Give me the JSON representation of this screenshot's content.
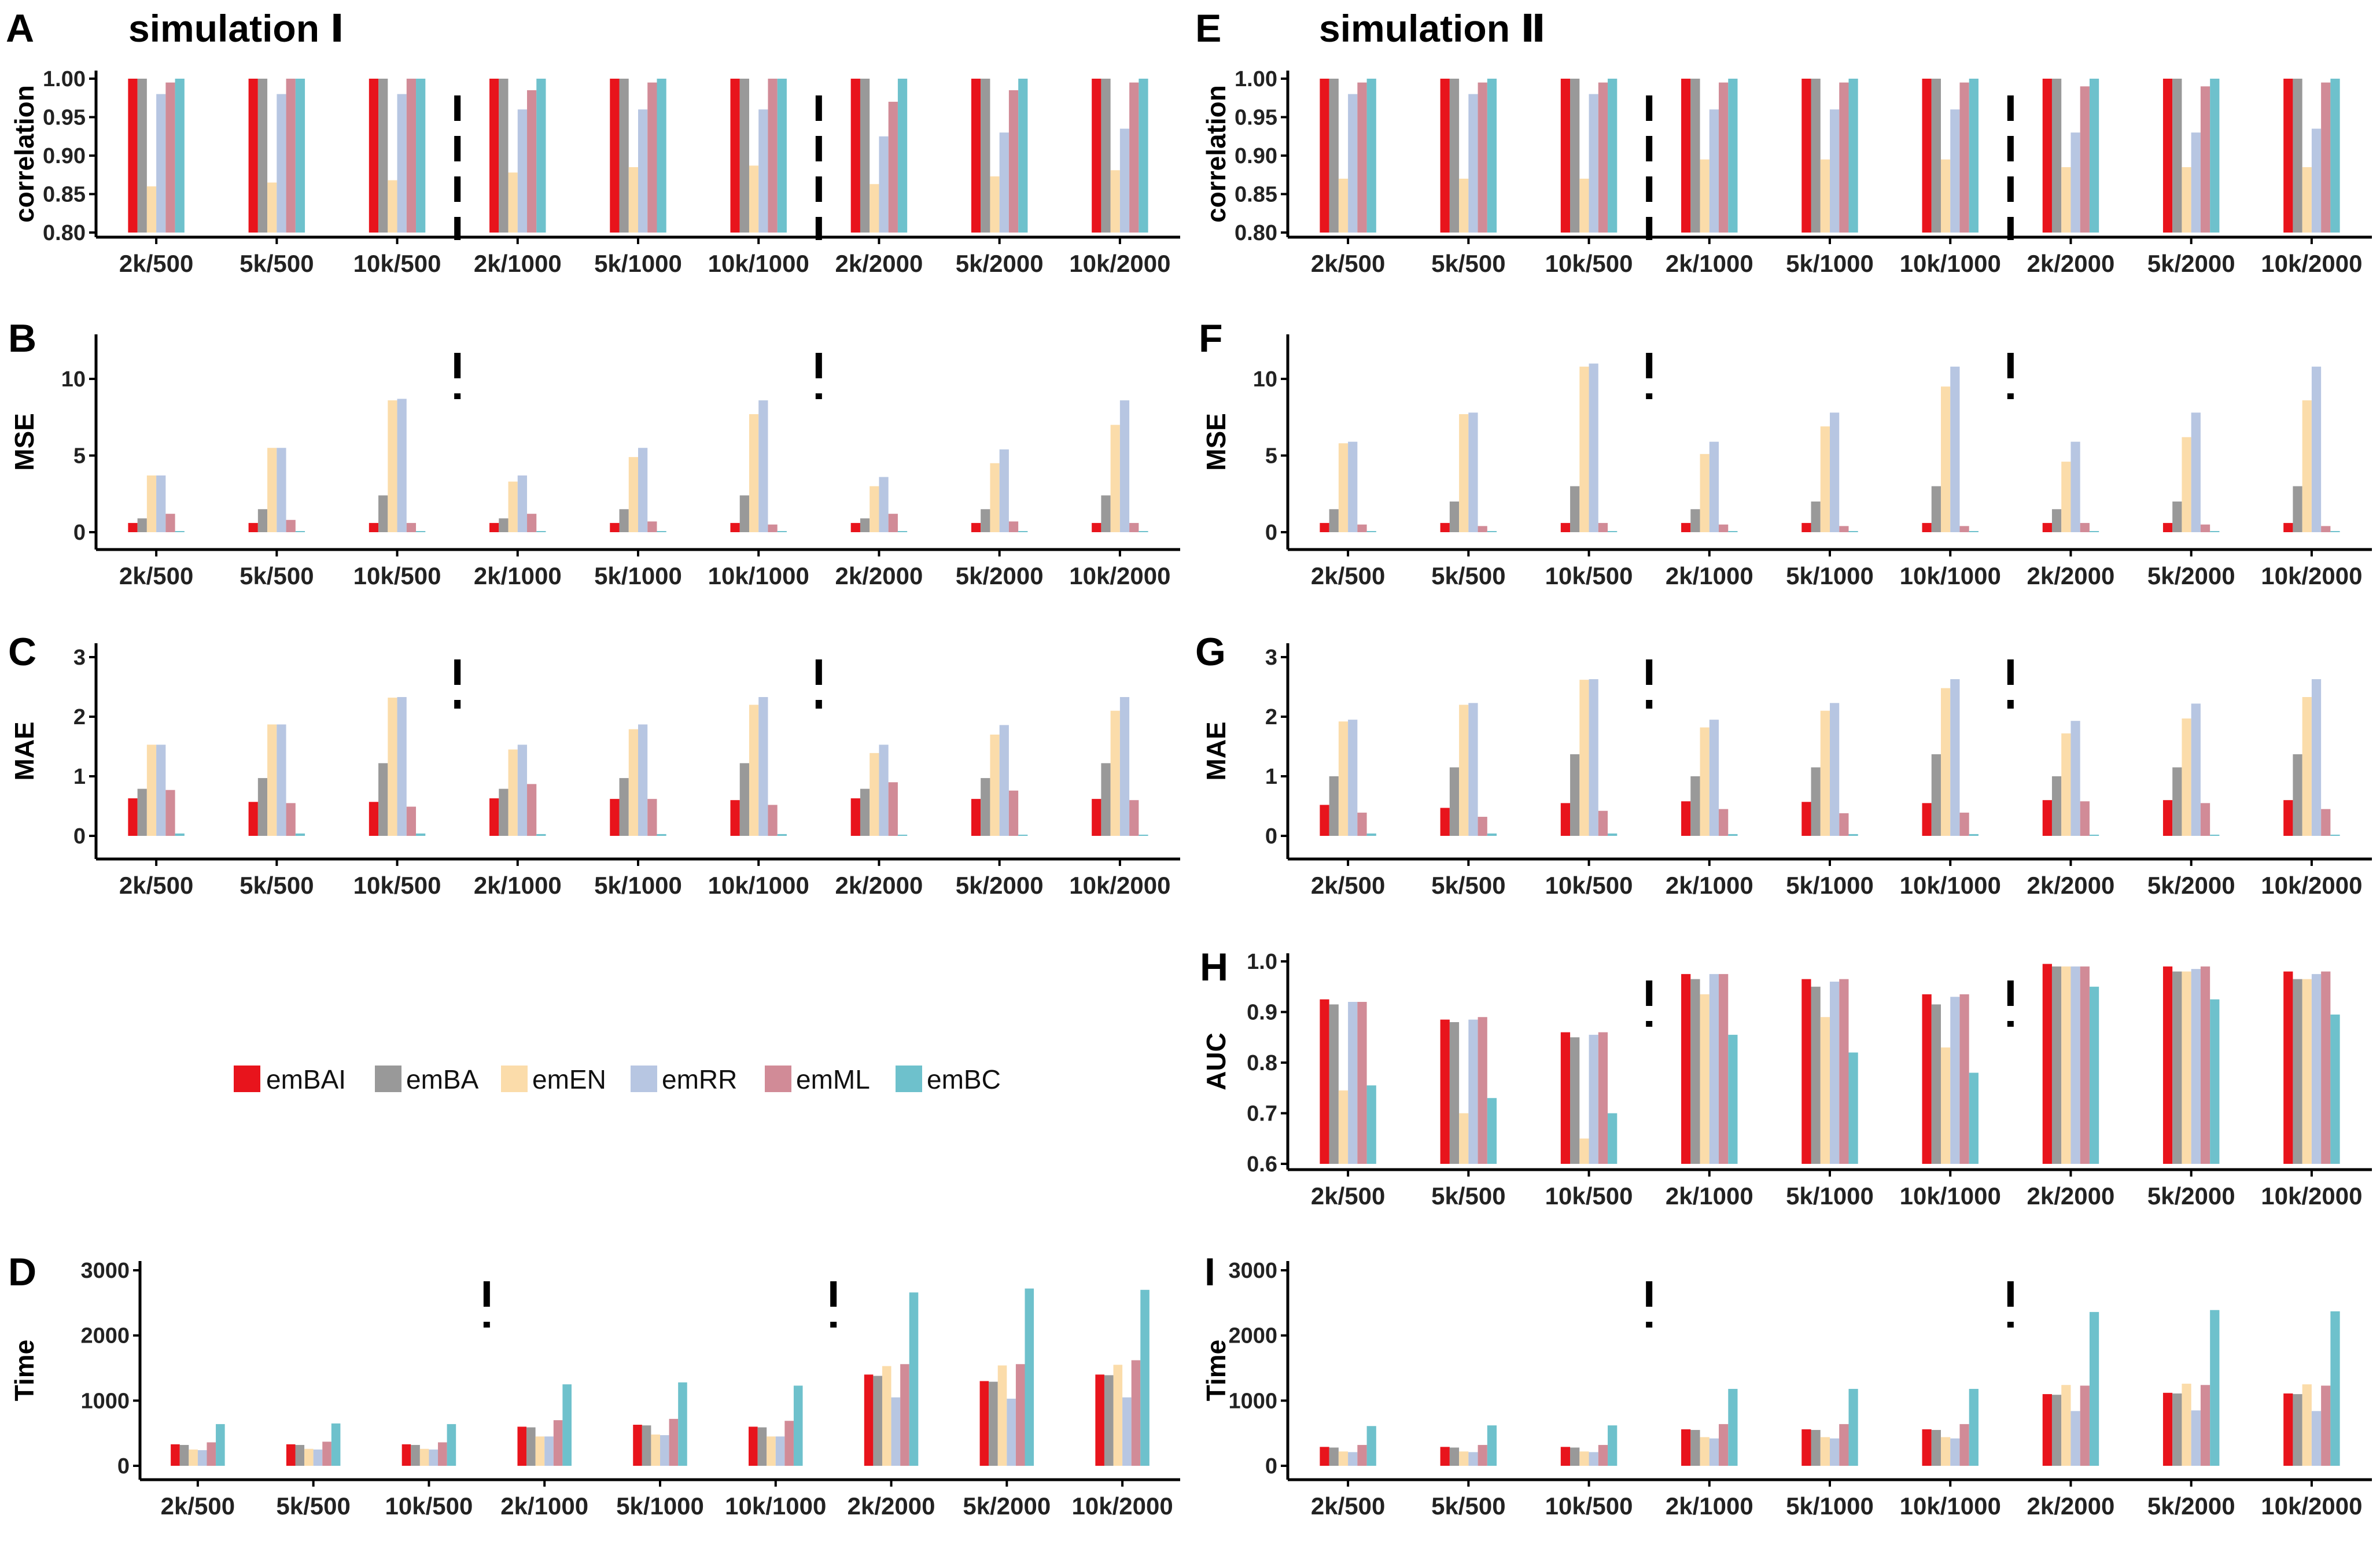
{
  "figure": {
    "left_title": "simulation Ⅰ",
    "right_title": "simulation Ⅱ"
  },
  "legend": [
    {
      "name": "emBAI",
      "color": "#e8141c"
    },
    {
      "name": "emBA",
      "color": "#999999"
    },
    {
      "name": "emEN",
      "color": "#fbdcaa"
    },
    {
      "name": "emRR",
      "color": "#b7c6e2"
    },
    {
      "name": "emML",
      "color": "#d18b97"
    },
    {
      "name": "emBC",
      "color": "#6ec1cc"
    }
  ],
  "chart_data": [
    {
      "id": "A",
      "type": "bar",
      "panel_label": "A",
      "ylabel": "correlation",
      "ylim": [
        0.8,
        1.0
      ],
      "yticks": [
        "0.80",
        "0.85",
        "0.90",
        "0.95",
        "1.00"
      ],
      "categories": [
        "2k/500",
        "5k/500",
        "10k/500",
        "2k/1000",
        "5k/1000",
        "10k/1000",
        "2k/2000",
        "5k/2000",
        "10k/2000"
      ],
      "series": [
        {
          "name": "emBAI",
          "values": [
            1.0,
            1.0,
            1.0,
            1.0,
            1.0,
            1.0,
            1.0,
            1.0,
            1.0
          ]
        },
        {
          "name": "emBA",
          "values": [
            1.0,
            1.0,
            1.0,
            1.0,
            1.0,
            1.0,
            1.0,
            1.0,
            1.0
          ]
        },
        {
          "name": "emEN",
          "values": [
            0.86,
            0.865,
            0.868,
            0.878,
            0.885,
            0.887,
            0.863,
            0.873,
            0.881
          ]
        },
        {
          "name": "emRR",
          "values": [
            0.98,
            0.98,
            0.98,
            0.96,
            0.96,
            0.96,
            0.925,
            0.93,
            0.935
          ]
        },
        {
          "name": "emML",
          "values": [
            0.995,
            1.0,
            1.0,
            0.985,
            0.995,
            1.0,
            0.97,
            0.985,
            0.995
          ]
        },
        {
          "name": "emBC",
          "values": [
            1.0,
            1.0,
            1.0,
            1.0,
            1.0,
            1.0,
            1.0,
            1.0,
            1.0
          ]
        }
      ]
    },
    {
      "id": "B",
      "type": "bar",
      "panel_label": "B",
      "ylabel": "MSE",
      "ylim": [
        0,
        12
      ],
      "yticks": [
        "0",
        "5",
        "10"
      ],
      "categories": [
        "2k/500",
        "5k/500",
        "10k/500",
        "2k/1000",
        "5k/1000",
        "10k/1000",
        "2k/2000",
        "5k/2000",
        "10k/2000"
      ],
      "series": [
        {
          "name": "emBAI",
          "values": [
            0.6,
            0.6,
            0.6,
            0.6,
            0.6,
            0.6,
            0.6,
            0.6,
            0.6
          ]
        },
        {
          "name": "emBA",
          "values": [
            0.9,
            1.5,
            2.4,
            0.9,
            1.5,
            2.4,
            0.9,
            1.5,
            2.4
          ]
        },
        {
          "name": "emEN",
          "values": [
            3.7,
            5.5,
            8.6,
            3.3,
            4.9,
            7.7,
            3.0,
            4.5,
            7.0
          ]
        },
        {
          "name": "emRR",
          "values": [
            3.7,
            5.5,
            8.7,
            3.7,
            5.5,
            8.6,
            3.6,
            5.4,
            8.6
          ]
        },
        {
          "name": "emML",
          "values": [
            1.2,
            0.8,
            0.6,
            1.2,
            0.7,
            0.5,
            1.2,
            0.7,
            0.6
          ]
        },
        {
          "name": "emBC",
          "values": [
            0.05,
            0.05,
            0.05,
            0.05,
            0.05,
            0.05,
            0.05,
            0.05,
            0.05
          ]
        }
      ]
    },
    {
      "id": "C",
      "type": "bar",
      "panel_label": "C",
      "ylabel": "MAE",
      "ylim": [
        0,
        3
      ],
      "yticks": [
        "0",
        "1",
        "2",
        "3"
      ],
      "categories": [
        "2k/500",
        "5k/500",
        "10k/500",
        "2k/1000",
        "5k/1000",
        "10k/1000",
        "2k/2000",
        "5k/2000",
        "10k/2000"
      ],
      "series": [
        {
          "name": "emBAI",
          "values": [
            0.63,
            0.57,
            0.57,
            0.63,
            0.62,
            0.6,
            0.63,
            0.62,
            0.62
          ]
        },
        {
          "name": "emBA",
          "values": [
            0.79,
            0.97,
            1.22,
            0.79,
            0.97,
            1.22,
            0.79,
            0.97,
            1.22
          ]
        },
        {
          "name": "emEN",
          "values": [
            1.53,
            1.87,
            2.32,
            1.45,
            1.79,
            2.2,
            1.39,
            1.7,
            2.1
          ]
        },
        {
          "name": "emRR",
          "values": [
            1.53,
            1.87,
            2.33,
            1.53,
            1.87,
            2.33,
            1.53,
            1.86,
            2.33
          ]
        },
        {
          "name": "emML",
          "values": [
            0.77,
            0.55,
            0.49,
            0.87,
            0.62,
            0.52,
            0.9,
            0.76,
            0.6
          ]
        },
        {
          "name": "emBC",
          "values": [
            0.04,
            0.04,
            0.04,
            0.03,
            0.03,
            0.03,
            0.02,
            0.02,
            0.02
          ]
        }
      ]
    },
    {
      "id": "D",
      "type": "bar",
      "panel_label": "D",
      "ylabel": "Time",
      "ylim": [
        0,
        3000
      ],
      "yticks": [
        "0",
        "1000",
        "2000",
        "3000"
      ],
      "categories": [
        "2k/500",
        "5k/500",
        "10k/500",
        "2k/1000",
        "5k/1000",
        "10k/1000",
        "2k/2000",
        "5k/2000",
        "10k/2000"
      ],
      "series": [
        {
          "name": "emBAI",
          "values": [
            330,
            330,
            330,
            600,
            630,
            600,
            1400,
            1300,
            1400
          ]
        },
        {
          "name": "emBA",
          "values": [
            320,
            320,
            320,
            590,
            620,
            590,
            1380,
            1290,
            1390
          ]
        },
        {
          "name": "emEN",
          "values": [
            250,
            260,
            260,
            450,
            480,
            450,
            1530,
            1540,
            1550
          ]
        },
        {
          "name": "emRR",
          "values": [
            240,
            250,
            250,
            450,
            470,
            450,
            1050,
            1030,
            1050
          ]
        },
        {
          "name": "emML",
          "values": [
            360,
            370,
            360,
            700,
            720,
            690,
            1560,
            1560,
            1620
          ]
        },
        {
          "name": "emBC",
          "values": [
            640,
            650,
            640,
            1250,
            1280,
            1230,
            2660,
            2720,
            2700
          ]
        }
      ]
    },
    {
      "id": "E",
      "type": "bar",
      "panel_label": "E",
      "ylabel": "correlation",
      "ylim": [
        0.8,
        1.0
      ],
      "yticks": [
        "0.80",
        "0.85",
        "0.90",
        "0.95",
        "1.00"
      ],
      "categories": [
        "2k/500",
        "5k/500",
        "10k/500",
        "2k/1000",
        "5k/1000",
        "10k/1000",
        "2k/2000",
        "5k/2000",
        "10k/2000"
      ],
      "series": [
        {
          "name": "emBAI",
          "values": [
            1.0,
            1.0,
            1.0,
            1.0,
            1.0,
            1.0,
            1.0,
            1.0,
            1.0
          ]
        },
        {
          "name": "emBA",
          "values": [
            1.0,
            1.0,
            1.0,
            1.0,
            1.0,
            1.0,
            1.0,
            1.0,
            1.0
          ]
        },
        {
          "name": "emEN",
          "values": [
            0.87,
            0.87,
            0.87,
            0.895,
            0.895,
            0.895,
            0.885,
            0.885,
            0.885
          ]
        },
        {
          "name": "emRR",
          "values": [
            0.98,
            0.98,
            0.98,
            0.96,
            0.96,
            0.96,
            0.93,
            0.93,
            0.935
          ]
        },
        {
          "name": "emML",
          "values": [
            0.995,
            0.995,
            0.995,
            0.995,
            0.995,
            0.995,
            0.99,
            0.99,
            0.995
          ]
        },
        {
          "name": "emBC",
          "values": [
            1.0,
            1.0,
            1.0,
            1.0,
            1.0,
            1.0,
            1.0,
            1.0,
            1.0
          ]
        }
      ]
    },
    {
      "id": "F",
      "type": "bar",
      "panel_label": "F",
      "ylabel": "MSE",
      "ylim": [
        0,
        12
      ],
      "yticks": [
        "0",
        "5",
        "10"
      ],
      "categories": [
        "2k/500",
        "5k/500",
        "10k/500",
        "2k/1000",
        "5k/1000",
        "10k/1000",
        "2k/2000",
        "5k/2000",
        "10k/2000"
      ],
      "series": [
        {
          "name": "emBAI",
          "values": [
            0.6,
            0.6,
            0.6,
            0.6,
            0.6,
            0.6,
            0.6,
            0.6,
            0.6
          ]
        },
        {
          "name": "emBA",
          "values": [
            1.5,
            2.0,
            3.0,
            1.5,
            2.0,
            3.0,
            1.5,
            2.0,
            3.0
          ]
        },
        {
          "name": "emEN",
          "values": [
            5.8,
            7.7,
            10.8,
            5.1,
            6.9,
            9.5,
            4.6,
            6.2,
            8.6
          ]
        },
        {
          "name": "emRR",
          "values": [
            5.9,
            7.8,
            11.0,
            5.9,
            7.8,
            10.8,
            5.9,
            7.8,
            10.8
          ]
        },
        {
          "name": "emML",
          "values": [
            0.5,
            0.4,
            0.6,
            0.5,
            0.4,
            0.4,
            0.6,
            0.5,
            0.4
          ]
        },
        {
          "name": "emBC",
          "values": [
            0.05,
            0.05,
            0.05,
            0.05,
            0.05,
            0.05,
            0.05,
            0.05,
            0.05
          ]
        }
      ]
    },
    {
      "id": "G",
      "type": "bar",
      "panel_label": "G",
      "ylabel": "MAE",
      "ylim": [
        0,
        3
      ],
      "yticks": [
        "0",
        "1",
        "2",
        "3"
      ],
      "categories": [
        "2k/500",
        "5k/500",
        "10k/500",
        "2k/1000",
        "5k/1000",
        "10k/1000",
        "2k/2000",
        "5k/2000",
        "10k/2000"
      ],
      "series": [
        {
          "name": "emBAI",
          "values": [
            0.52,
            0.47,
            0.55,
            0.58,
            0.57,
            0.55,
            0.6,
            0.6,
            0.6
          ]
        },
        {
          "name": "emBA",
          "values": [
            1.0,
            1.15,
            1.37,
            1.0,
            1.15,
            1.37,
            1.0,
            1.15,
            1.37
          ]
        },
        {
          "name": "emEN",
          "values": [
            1.92,
            2.2,
            2.62,
            1.82,
            2.1,
            2.48,
            1.72,
            1.97,
            2.33
          ]
        },
        {
          "name": "emRR",
          "values": [
            1.95,
            2.23,
            2.63,
            1.95,
            2.23,
            2.63,
            1.93,
            2.22,
            2.63
          ]
        },
        {
          "name": "emML",
          "values": [
            0.39,
            0.32,
            0.42,
            0.45,
            0.38,
            0.39,
            0.58,
            0.55,
            0.45
          ]
        },
        {
          "name": "emBC",
          "values": [
            0.04,
            0.04,
            0.04,
            0.03,
            0.03,
            0.03,
            0.02,
            0.02,
            0.02
          ]
        }
      ]
    },
    {
      "id": "H",
      "type": "bar",
      "panel_label": "H",
      "ylabel": "AUC",
      "ylim": [
        0.6,
        1.0
      ],
      "yticks": [
        "0.6",
        "0.7",
        "0.8",
        "0.9",
        "1.0"
      ],
      "categories": [
        "2k/500",
        "5k/500",
        "10k/500",
        "2k/1000",
        "5k/1000",
        "10k/1000",
        "2k/2000",
        "5k/2000",
        "10k/2000"
      ],
      "series": [
        {
          "name": "emBAI",
          "values": [
            0.925,
            0.885,
            0.86,
            0.975,
            0.965,
            0.935,
            0.995,
            0.99,
            0.98
          ]
        },
        {
          "name": "emBA",
          "values": [
            0.915,
            0.88,
            0.85,
            0.965,
            0.95,
            0.915,
            0.99,
            0.98,
            0.965
          ]
        },
        {
          "name": "emEN",
          "values": [
            0.745,
            0.7,
            0.65,
            0.935,
            0.89,
            0.83,
            0.99,
            0.98,
            0.965
          ]
        },
        {
          "name": "emRR",
          "values": [
            0.92,
            0.885,
            0.855,
            0.975,
            0.96,
            0.93,
            0.99,
            0.985,
            0.975
          ]
        },
        {
          "name": "emML",
          "values": [
            0.92,
            0.89,
            0.86,
            0.975,
            0.965,
            0.935,
            0.99,
            0.99,
            0.98
          ]
        },
        {
          "name": "emBC",
          "values": [
            0.755,
            0.73,
            0.7,
            0.855,
            0.82,
            0.78,
            0.95,
            0.925,
            0.895
          ]
        }
      ]
    },
    {
      "id": "I",
      "type": "bar",
      "panel_label": "I",
      "ylabel": "Time",
      "ylim": [
        0,
        3000
      ],
      "yticks": [
        "0",
        "1000",
        "2000",
        "3000"
      ],
      "categories": [
        "2k/500",
        "5k/500",
        "10k/500",
        "2k/1000",
        "5k/1000",
        "10k/1000",
        "2k/2000",
        "5k/2000",
        "10k/2000"
      ],
      "series": [
        {
          "name": "emBAI",
          "values": [
            290,
            290,
            290,
            560,
            560,
            560,
            1100,
            1120,
            1110
          ]
        },
        {
          "name": "emBA",
          "values": [
            280,
            280,
            280,
            550,
            550,
            550,
            1090,
            1110,
            1100
          ]
        },
        {
          "name": "emEN",
          "values": [
            220,
            220,
            220,
            440,
            440,
            440,
            1240,
            1260,
            1250
          ]
        },
        {
          "name": "emRR",
          "values": [
            210,
            210,
            210,
            420,
            420,
            420,
            840,
            850,
            840
          ]
        },
        {
          "name": "emML",
          "values": [
            320,
            320,
            320,
            640,
            640,
            640,
            1230,
            1240,
            1230
          ]
        },
        {
          "name": "emBC",
          "values": [
            610,
            620,
            620,
            1180,
            1180,
            1180,
            2360,
            2390,
            2370
          ]
        }
      ]
    }
  ]
}
